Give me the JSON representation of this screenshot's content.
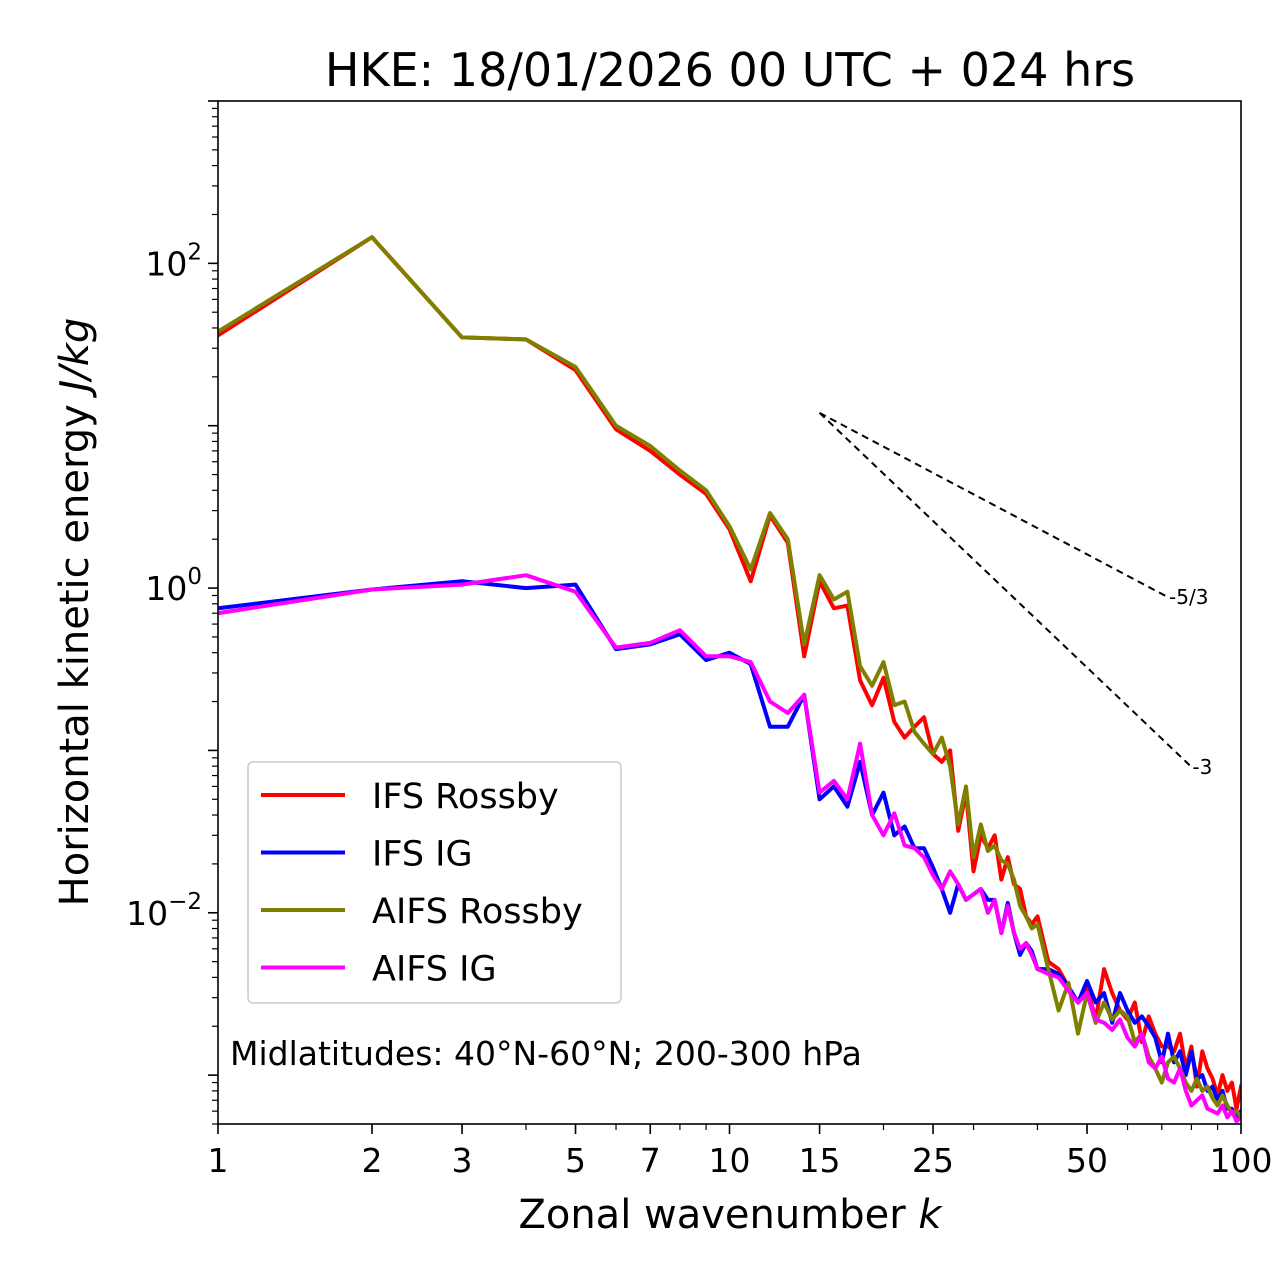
{
  "chart_data": {
    "type": "line",
    "title": "HKE: 18/01/2026 00 UTC + 024 hrs",
    "xlabel": "Zonal wavenumber",
    "xlabel_var": "k",
    "ylabel": "Horizontal kinetic energy",
    "ylabel_unit": "J/kg",
    "xscale": "log",
    "yscale": "log",
    "xlim": [
      1,
      100
    ],
    "ylim": [
      0.0005,
      1000
    ],
    "xticks": [
      1,
      2,
      3,
      5,
      7,
      10,
      15,
      25,
      50,
      100
    ],
    "xtick_labels": [
      "1",
      "2",
      "3",
      "5",
      "7",
      "10",
      "15",
      "25",
      "50",
      "100"
    ],
    "yticks": [
      {
        "value": 100,
        "base": "10",
        "exp": "2"
      },
      {
        "value": 1,
        "base": "10",
        "exp": "0"
      },
      {
        "value": 0.01,
        "base": "10",
        "exp": "−2"
      }
    ],
    "annotation": "Midlatitudes: 40°N-60°N; 200-300 hPa",
    "legend_position": "lower-left",
    "series": [
      {
        "name": "IFS Rossby",
        "color": "#ff0000",
        "x": [
          1,
          2,
          3,
          4,
          5,
          6,
          7,
          8,
          9,
          10,
          11,
          12,
          13,
          14,
          15,
          16,
          17,
          18,
          19,
          20,
          21,
          22,
          23,
          24,
          25,
          26,
          27,
          28,
          29,
          30,
          31,
          32,
          33,
          34,
          35,
          36,
          37,
          38,
          39,
          40,
          42,
          44,
          46,
          48,
          50,
          52,
          54,
          56,
          58,
          60,
          62,
          64,
          66,
          68,
          70,
          72,
          74,
          76,
          78,
          80,
          82,
          84,
          86,
          88,
          90,
          92,
          94,
          96,
          98,
          100
        ],
        "y": [
          36,
          145,
          35,
          34,
          22,
          9.5,
          7.0,
          5.0,
          3.8,
          2.3,
          1.1,
          2.8,
          1.9,
          0.38,
          1.1,
          0.75,
          0.78,
          0.27,
          0.19,
          0.28,
          0.15,
          0.12,
          0.14,
          0.16,
          0.095,
          0.085,
          0.1,
          0.032,
          0.055,
          0.018,
          0.03,
          0.025,
          0.03,
          0.016,
          0.022,
          0.015,
          0.014,
          0.0095,
          0.0085,
          0.0095,
          0.005,
          0.0045,
          0.0035,
          0.0028,
          0.0035,
          0.0022,
          0.0045,
          0.0032,
          0.0025,
          0.0022,
          0.0028,
          0.0016,
          0.0023,
          0.0018,
          0.0015,
          0.0015,
          0.0014,
          0.0018,
          0.0011,
          0.0015,
          0.00085,
          0.0014,
          0.0011,
          0.00095,
          0.00075,
          0.001,
          0.0008,
          0.0009,
          0.00062,
          0.00085
        ]
      },
      {
        "name": "IFS IG",
        "color": "#0000ff",
        "x": [
          1,
          2,
          3,
          4,
          5,
          6,
          7,
          8,
          9,
          10,
          11,
          12,
          13,
          14,
          15,
          16,
          17,
          18,
          19,
          20,
          21,
          22,
          23,
          24,
          25,
          26,
          27,
          28,
          29,
          30,
          31,
          32,
          33,
          34,
          35,
          36,
          37,
          38,
          39,
          40,
          42,
          44,
          46,
          48,
          50,
          52,
          54,
          56,
          58,
          60,
          62,
          64,
          66,
          68,
          70,
          72,
          74,
          76,
          78,
          80,
          82,
          84,
          86,
          88,
          90,
          92,
          94,
          96,
          98,
          100
        ],
        "y": [
          0.75,
          0.98,
          1.1,
          1.0,
          1.05,
          0.42,
          0.45,
          0.52,
          0.36,
          0.4,
          0.34,
          0.14,
          0.14,
          0.22,
          0.05,
          0.06,
          0.045,
          0.085,
          0.04,
          0.055,
          0.03,
          0.034,
          0.025,
          0.025,
          0.019,
          0.014,
          0.01,
          0.015,
          0.012,
          0.013,
          0.014,
          0.012,
          0.012,
          0.0075,
          0.0115,
          0.0075,
          0.0055,
          0.0065,
          0.0058,
          0.0045,
          0.0045,
          0.0042,
          0.0035,
          0.0028,
          0.0038,
          0.0028,
          0.0032,
          0.0021,
          0.0032,
          0.0025,
          0.0021,
          0.0023,
          0.002,
          0.0017,
          0.0012,
          0.0018,
          0.0012,
          0.0014,
          0.001,
          0.0014,
          0.00095,
          0.001,
          0.0008,
          0.00085,
          0.0007,
          0.0008,
          0.00062,
          0.00062,
          0.00055,
          0.0006
        ]
      },
      {
        "name": "AIFS Rossby",
        "color": "#808000",
        "x": [
          1,
          2,
          3,
          4,
          5,
          6,
          7,
          8,
          9,
          10,
          11,
          12,
          13,
          14,
          15,
          16,
          17,
          18,
          19,
          20,
          21,
          22,
          23,
          24,
          25,
          26,
          27,
          28,
          29,
          30,
          31,
          32,
          33,
          34,
          35,
          36,
          37,
          38,
          39,
          40,
          42,
          44,
          46,
          48,
          50,
          52,
          54,
          56,
          58,
          60,
          62,
          64,
          66,
          68,
          70,
          72,
          74,
          76,
          78,
          80,
          82,
          84,
          86,
          88,
          90,
          92,
          94,
          96,
          98,
          100
        ],
        "y": [
          38,
          145,
          35,
          34,
          23,
          10.0,
          7.5,
          5.3,
          4.0,
          2.4,
          1.3,
          2.9,
          2.0,
          0.45,
          1.2,
          0.85,
          0.95,
          0.33,
          0.25,
          0.35,
          0.19,
          0.2,
          0.13,
          0.11,
          0.095,
          0.12,
          0.08,
          0.035,
          0.06,
          0.022,
          0.035,
          0.024,
          0.026,
          0.021,
          0.02,
          0.016,
          0.011,
          0.0095,
          0.008,
          0.0085,
          0.0045,
          0.0025,
          0.0037,
          0.0018,
          0.0032,
          0.0021,
          0.0028,
          0.0022,
          0.0025,
          0.0023,
          0.0016,
          0.0018,
          0.0013,
          0.0011,
          0.0009,
          0.0012,
          0.0013,
          0.0011,
          0.0009,
          0.0008,
          0.00095,
          0.0008,
          0.00085,
          0.00072,
          0.00065,
          0.00075,
          0.00065,
          0.00058,
          0.0006,
          0.00055
        ]
      },
      {
        "name": "AIFS IG",
        "color": "#ff00ff",
        "x": [
          1,
          2,
          3,
          4,
          5,
          6,
          7,
          8,
          9,
          10,
          11,
          12,
          13,
          14,
          15,
          16,
          17,
          18,
          19,
          20,
          21,
          22,
          23,
          24,
          25,
          26,
          27,
          28,
          29,
          30,
          31,
          32,
          33,
          34,
          35,
          36,
          37,
          38,
          39,
          40,
          42,
          44,
          46,
          48,
          50,
          52,
          54,
          56,
          58,
          60,
          62,
          64,
          66,
          68,
          70,
          72,
          74,
          76,
          78,
          80,
          82,
          84,
          86,
          88,
          90,
          92,
          94,
          96,
          98,
          100
        ],
        "y": [
          0.7,
          0.98,
          1.05,
          1.2,
          0.95,
          0.43,
          0.46,
          0.55,
          0.38,
          0.38,
          0.35,
          0.2,
          0.17,
          0.22,
          0.055,
          0.065,
          0.05,
          0.11,
          0.04,
          0.03,
          0.041,
          0.026,
          0.025,
          0.022,
          0.017,
          0.014,
          0.018,
          0.015,
          0.012,
          0.013,
          0.014,
          0.01,
          0.012,
          0.0075,
          0.011,
          0.0075,
          0.006,
          0.0065,
          0.0055,
          0.0045,
          0.0042,
          0.004,
          0.0033,
          0.0028,
          0.0032,
          0.0022,
          0.0021,
          0.0019,
          0.0022,
          0.0017,
          0.0015,
          0.0018,
          0.0012,
          0.0011,
          0.0013,
          0.00095,
          0.0009,
          0.0011,
          0.0008,
          0.00065,
          0.0007,
          0.00075,
          0.00062,
          0.0006,
          0.00058,
          0.00065,
          0.00055,
          0.0006,
          0.00052,
          0.00055
        ]
      }
    ],
    "reference_slopes": [
      {
        "label": "-5/3",
        "slope": -1.6667,
        "x_start": 15,
        "x_end": 72,
        "y_start": 12
      },
      {
        "label": "-3",
        "slope": -3,
        "x_start": 15,
        "x_end": 80,
        "y_start": 12
      }
    ]
  }
}
